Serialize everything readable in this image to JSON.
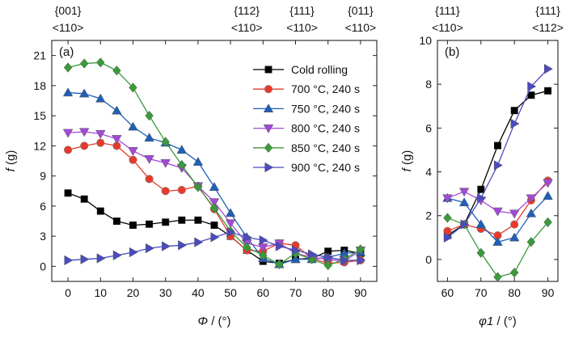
{
  "chart_data": [
    {
      "type": "line",
      "panel_label": "(a)",
      "xlabel": "Φ / (°)",
      "ylabel": "f (g)",
      "xlim": [
        -5,
        95
      ],
      "ylim": [
        -1.5,
        22.5
      ],
      "xticks": [
        0,
        10,
        20,
        30,
        40,
        50,
        60,
        70,
        80,
        90
      ],
      "yticks": [
        0,
        3,
        6,
        9,
        12,
        15,
        18,
        21
      ],
      "top_labels": [
        {
          "x": 0,
          "plane": "{001}",
          "direction": "<110>"
        },
        {
          "x": 55,
          "plane": "{112}",
          "direction": "<110>"
        },
        {
          "x": 90,
          "plane": "{011}",
          "direction": "<110>"
        }
      ],
      "top_label_mid": {
        "x": 72,
        "plane": "{111}",
        "direction": "<110>"
      },
      "legend_position": "top-right",
      "x": [
        0,
        5,
        10,
        15,
        20,
        25,
        30,
        35,
        40,
        45,
        50,
        55,
        60,
        65,
        70,
        75,
        80,
        85,
        90
      ],
      "series": [
        {
          "name": "Cold rolling",
          "color": "#000000",
          "marker": "square",
          "values": [
            7.3,
            6.7,
            5.5,
            4.5,
            4.1,
            4.2,
            4.4,
            4.6,
            4.6,
            4.1,
            3.0,
            1.6,
            0.5,
            0.3,
            0.7,
            0.8,
            1.5,
            1.6,
            1.3
          ]
        },
        {
          "name": "700 °C, 240 s",
          "color": "#e8392c",
          "marker": "circle",
          "values": [
            11.6,
            12.0,
            12.3,
            12.0,
            10.6,
            8.7,
            7.5,
            7.6,
            8.0,
            5.7,
            3.0,
            1.6,
            1.5,
            2.3,
            2.1,
            0.8,
            0.3,
            0.4,
            0.6
          ]
        },
        {
          "name": "750 °C, 240 s",
          "color": "#1f5fb8",
          "marker": "triangle-up",
          "values": [
            17.3,
            17.2,
            16.7,
            15.5,
            13.9,
            12.8,
            12.3,
            11.6,
            10.4,
            7.9,
            5.3,
            2.9,
            0.8,
            0.2,
            0.7,
            0.7,
            0.9,
            1.3,
            1.4
          ]
        },
        {
          "name": "800 °C, 240 s",
          "color": "#a24ad6",
          "marker": "triangle-down",
          "values": [
            13.3,
            13.4,
            13.2,
            12.7,
            11.5,
            10.7,
            10.3,
            9.8,
            8.0,
            6.4,
            4.3,
            2.3,
            1.9,
            2.3,
            1.3,
            0.9,
            0.7,
            0.5,
            1.6
          ]
        },
        {
          "name": "850 °C, 240 s",
          "color": "#3a9a3a",
          "marker": "diamond",
          "values": [
            19.8,
            20.2,
            20.3,
            19.5,
            17.8,
            15.0,
            12.4,
            10.1,
            7.9,
            5.8,
            3.5,
            1.9,
            1.1,
            0.2,
            1.3,
            0.7,
            0.1,
            0.7,
            1.7
          ]
        },
        {
          "name": "900 °C, 240 s",
          "color": "#4a4ac2",
          "marker": "triangle-right",
          "values": [
            0.6,
            0.7,
            0.8,
            1.1,
            1.4,
            1.8,
            2.0,
            2.1,
            2.4,
            2.9,
            3.4,
            2.9,
            2.6,
            2.0,
            1.6,
            1.2,
            0.9,
            0.6,
            0.6
          ]
        }
      ]
    },
    {
      "type": "line",
      "panel_label": "(b)",
      "xlabel": "φ1 / (°)",
      "ylabel": "f (g)",
      "xlim": [
        57,
        93
      ],
      "ylim": [
        -1.0,
        10.0
      ],
      "xticks": [
        60,
        70,
        80,
        90
      ],
      "yticks": [
        0,
        2,
        4,
        6,
        8,
        10
      ],
      "top_labels": [
        {
          "x": 60,
          "plane": "{111}",
          "direction": "<110>"
        },
        {
          "x": 90,
          "plane": "{111}",
          "direction": "<112>"
        }
      ],
      "x": [
        60,
        65,
        70,
        75,
        80,
        85,
        90
      ],
      "series": [
        {
          "name": "Cold rolling",
          "color": "#000000",
          "marker": "square",
          "values": [
            1.1,
            1.6,
            3.2,
            5.2,
            6.8,
            7.5,
            7.7
          ]
        },
        {
          "name": "700 °C, 240 s",
          "color": "#e8392c",
          "marker": "circle",
          "values": [
            1.3,
            1.6,
            1.4,
            1.1,
            1.6,
            2.7,
            3.6
          ]
        },
        {
          "name": "750 °C, 240 s",
          "color": "#1f5fb8",
          "marker": "triangle-up",
          "values": [
            2.8,
            2.6,
            1.6,
            0.8,
            1.0,
            2.1,
            2.9
          ]
        },
        {
          "name": "800 °C, 240 s",
          "color": "#a24ad6",
          "marker": "triangle-down",
          "values": [
            2.8,
            3.1,
            2.7,
            2.2,
            2.1,
            2.8,
            3.5
          ]
        },
        {
          "name": "850 °C, 240 s",
          "color": "#3a9a3a",
          "marker": "diamond",
          "values": [
            1.9,
            1.6,
            0.3,
            -0.8,
            -0.6,
            0.8,
            1.7
          ]
        },
        {
          "name": "900 °C, 240 s",
          "color": "#4a4ac2",
          "marker": "triangle-right",
          "values": [
            1.0,
            1.6,
            2.8,
            4.3,
            6.2,
            7.9,
            8.7
          ]
        }
      ]
    }
  ]
}
